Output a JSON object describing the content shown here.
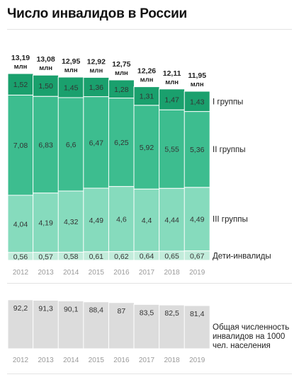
{
  "title": "Число инвалидов в России",
  "colors": {
    "group1": "#1aa06d",
    "group2": "#3dbd8f",
    "group3": "#86dbbd",
    "children": "#c2ecdb",
    "total_bar": "#dcdcdc",
    "year_text": "#9a9a9a",
    "label_text": "#333333"
  },
  "chart_data": [
    {
      "type": "bar",
      "stacked": true,
      "categories": [
        "2012",
        "2013",
        "2014",
        "2015",
        "2016",
        "2017",
        "2018",
        "2019"
      ],
      "unit_label": "млн",
      "totals": [
        "13,19",
        "13,08",
        "12,95",
        "12,92",
        "12,75",
        "12,26",
        "12,11",
        "11,95"
      ],
      "series": [
        {
          "key": "children",
          "name": "Дети-инвалиды",
          "values": [
            0.56,
            0.57,
            0.58,
            0.61,
            0.62,
            0.64,
            0.65,
            0.67
          ],
          "labels": [
            "0,56",
            "0,57",
            "0,58",
            "0,61",
            "0,62",
            "0,64",
            "0,65",
            "0,67"
          ]
        },
        {
          "key": "group3",
          "name": "III группы",
          "values": [
            4.04,
            4.19,
            4.32,
            4.49,
            4.6,
            4.4,
            4.44,
            4.49
          ],
          "labels": [
            "4,04",
            "4,19",
            "4,32",
            "4,49",
            "4,6",
            "4,4",
            "4,44",
            "4,49"
          ]
        },
        {
          "key": "group2",
          "name": "II группы",
          "values": [
            7.08,
            6.83,
            6.6,
            6.47,
            6.25,
            5.92,
            5.55,
            5.36
          ],
          "labels": [
            "7,08",
            "6,83",
            "6,6",
            "6,47",
            "6,25",
            "5,92",
            "5,55",
            "5,36"
          ]
        },
        {
          "key": "group1",
          "name": "I группы",
          "values": [
            1.52,
            1.5,
            1.45,
            1.36,
            1.28,
            1.31,
            1.47,
            1.43
          ],
          "labels": [
            "1,52",
            "1,50",
            "1,45",
            "1,36",
            "1,28",
            "1,31",
            "1,47",
            "1,43"
          ]
        }
      ]
    },
    {
      "type": "bar",
      "categories": [
        "2012",
        "2013",
        "2014",
        "2015",
        "2016",
        "2017",
        "2018",
        "2019"
      ],
      "series": [
        {
          "name": "Общая численность инвалидов на 1000 чел. населения",
          "values": [
            92.2,
            91.3,
            90.1,
            88.4,
            87,
            83.5,
            82.5,
            81.4
          ],
          "labels": [
            "92,2",
            "91,3",
            "90,1",
            "88,4",
            "87",
            "83,5",
            "82,5",
            "81,4"
          ]
        }
      ],
      "legend_lines": [
        "Общая численность",
        "инвалидов на 1000",
        "чел. населения"
      ]
    }
  ]
}
